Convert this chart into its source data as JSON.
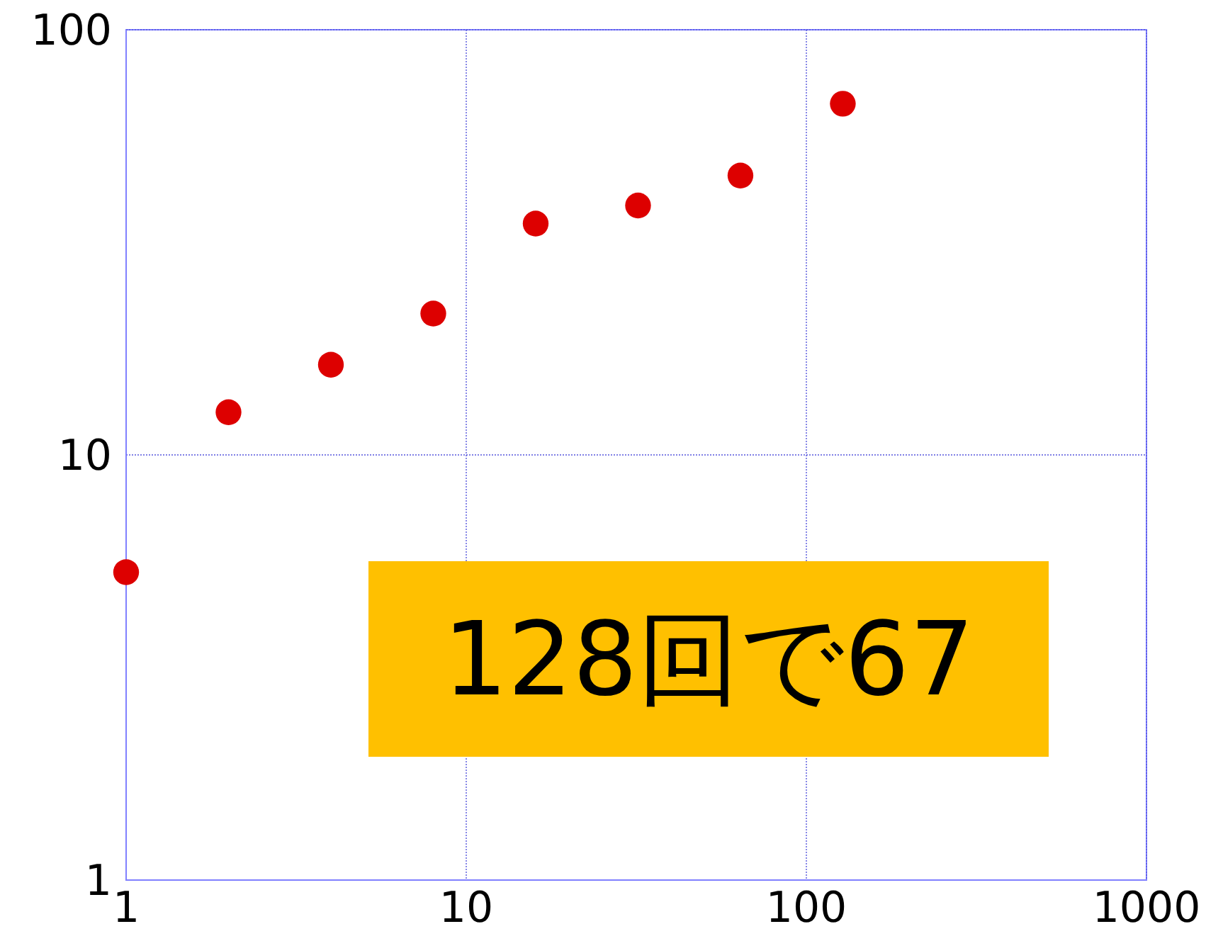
{
  "chart_data": {
    "type": "scatter",
    "x": [
      1,
      2,
      4,
      8,
      16,
      32,
      64,
      128
    ],
    "series": [
      {
        "color": "#dd0000",
        "values": [
          5.3,
          12.6,
          16.3,
          21.5,
          35,
          38.6,
          45.4,
          67
        ]
      }
    ],
    "log": "xy",
    "xlim": [
      1,
      1000
    ],
    "ylim": [
      1,
      100
    ],
    "xticks": [
      1,
      10,
      100,
      1000
    ],
    "yticks": [
      1,
      10,
      100
    ],
    "grid": true,
    "marker": "circle",
    "annotations": [
      "128回で67"
    ]
  }
}
